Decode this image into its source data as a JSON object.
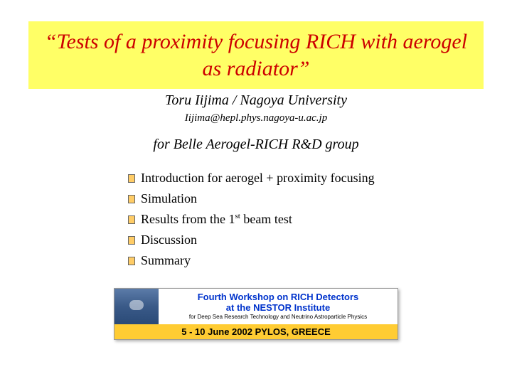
{
  "title": "“Tests of a proximity focusing RICH with aerogel as radiator”",
  "author": "Toru Iijima / Nagoya University",
  "email": "Iijima@hepl.phys.nagoya-u.ac.jp",
  "group": "for Belle Aerogel-RICH R&D group",
  "bullets": [
    "Introduction for aerogel + proximity focusing",
    "Simulation",
    "Results from the 1st beam test",
    "Discussion",
    "Summary"
  ],
  "banner": {
    "line1": "Fourth Workshop on RICH Detectors",
    "line2": "at the NESTOR Institute",
    "line3": "for Deep Sea Research Technology and Neutrino Astroparticle Physics",
    "dates": "5 - 10 June 2002  PYLOS, GREECE"
  },
  "colors": {
    "title_bg": "#ffff66",
    "title_text": "#cc0000",
    "bullet_marker": "#ffcc66",
    "banner_text": "#0033cc",
    "banner_date_bg": "#ffcc33"
  },
  "fonts": {
    "title_size": 30,
    "author_size": 20,
    "email_size": 15,
    "bullet_size": 18
  }
}
